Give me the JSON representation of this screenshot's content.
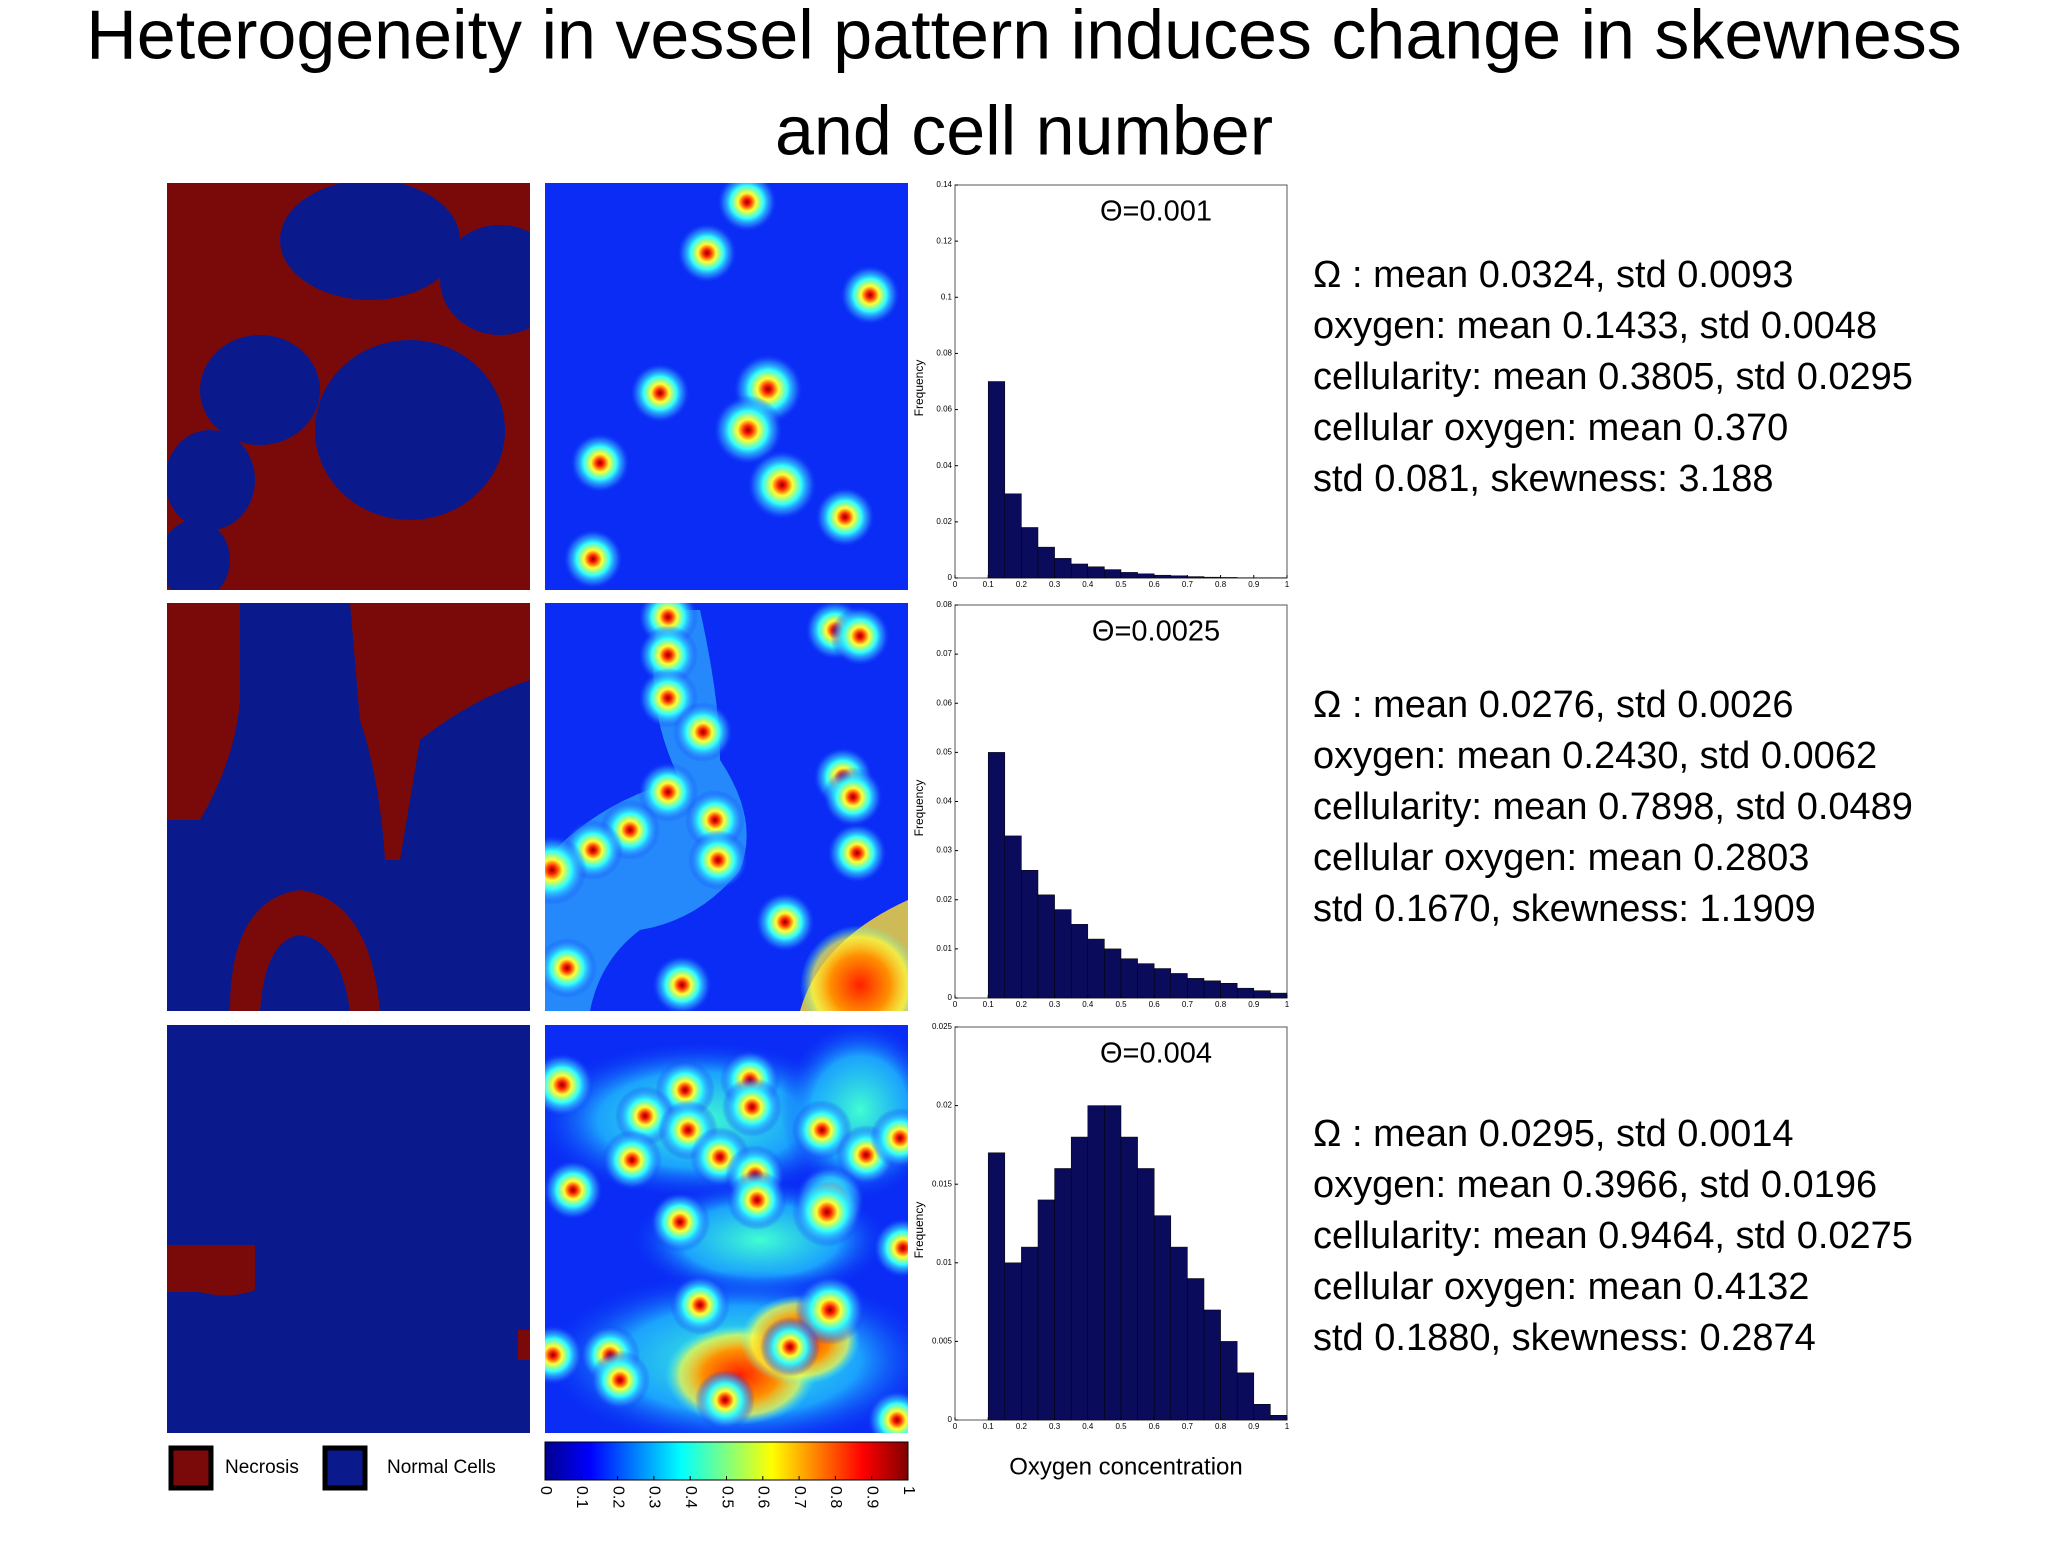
{
  "title": [
    "Heterogeneity in vessel pattern induces change in skewness",
    "and cell number"
  ],
  "rows": [
    {
      "stats": [
        "Ω : mean 0.0324, std 0.0093",
        "oxygen: mean 0.1433, std 0.0048",
        "cellularity: mean 0.3805, std 0.0295",
        "cellular oxygen: mean 0.370",
        "std 0.081, skewness: 3.188"
      ]
    },
    {
      "stats": [
        "Ω : mean 0.0276, std 0.0026",
        "oxygen: mean 0.2430, std 0.0062",
        "cellularity: mean 0.7898, std 0.0489",
        "cellular oxygen: mean 0.2803",
        "std 0.1670, skewness: 1.1909"
      ]
    },
    {
      "stats": [
        "Ω : mean 0.0295, std 0.0014",
        "oxygen: mean 0.3966, std 0.0196",
        "cellularity: mean 0.9464, std 0.0275",
        "cellular oxygen: mean 0.4132",
        "std 0.1880, skewness: 0.2874"
      ]
    }
  ],
  "legend": [
    "Necrosis",
    "Normal Cells"
  ],
  "colorbar": {
    "ticks": [
      0,
      0.1,
      0.2,
      0.3,
      0.4,
      0.5,
      0.6,
      0.7,
      0.8,
      0.9,
      1
    ]
  },
  "chart_data": [
    {
      "type": "histogram",
      "annotation": "Θ=0.001",
      "ylabel": "Frequency",
      "color": "#0b0b5c",
      "bins": [
        0.1,
        0.15,
        0.2,
        0.25,
        0.3,
        0.35,
        0.4,
        0.45,
        0.5,
        0.55,
        0.6,
        0.65,
        0.7,
        0.75,
        0.8,
        0.85,
        0.9,
        0.95,
        1.0
      ],
      "values": [
        0.07,
        0.03,
        0.018,
        0.011,
        0.007,
        0.005,
        0.004,
        0.003,
        0.002,
        0.0015,
        0.001,
        0.0008,
        0.0005,
        0.0003,
        0.0002,
        0.0001,
        0.0001,
        0.0001
      ],
      "xlim": [
        0,
        1
      ],
      "xticks": [
        0,
        0.1,
        0.2,
        0.3,
        0.4,
        0.5,
        0.6,
        0.7,
        0.8,
        0.9,
        1
      ],
      "ylim": [
        0,
        0.14
      ],
      "yticks": [
        0,
        0.02,
        0.04,
        0.06,
        0.08,
        0.1,
        0.12,
        0.14
      ]
    },
    {
      "type": "histogram",
      "annotation": "Θ=0.0025",
      "ylabel": "Frequency",
      "color": "#0b0b5c",
      "bins": [
        0.1,
        0.15,
        0.2,
        0.25,
        0.3,
        0.35,
        0.4,
        0.45,
        0.5,
        0.55,
        0.6,
        0.65,
        0.7,
        0.75,
        0.8,
        0.85,
        0.9,
        0.95,
        1.0
      ],
      "values": [
        0.05,
        0.033,
        0.026,
        0.021,
        0.018,
        0.015,
        0.012,
        0.01,
        0.008,
        0.007,
        0.006,
        0.005,
        0.004,
        0.0035,
        0.003,
        0.002,
        0.0015,
        0.001
      ],
      "xlim": [
        0,
        1
      ],
      "xticks": [
        0,
        0.1,
        0.2,
        0.3,
        0.4,
        0.5,
        0.6,
        0.7,
        0.8,
        0.9,
        1
      ],
      "ylim": [
        0,
        0.08
      ],
      "yticks": [
        0,
        0.01,
        0.02,
        0.03,
        0.04,
        0.05,
        0.06,
        0.07,
        0.08
      ]
    },
    {
      "type": "histogram",
      "annotation": "Θ=0.004",
      "ylabel": "Frequency",
      "xlabel": "Oxygen concentration",
      "color": "#0b0b5c",
      "bins": [
        0.1,
        0.15,
        0.2,
        0.25,
        0.3,
        0.35,
        0.4,
        0.45,
        0.5,
        0.55,
        0.6,
        0.65,
        0.7,
        0.75,
        0.8,
        0.85,
        0.9,
        0.95,
        1.0
      ],
      "values": [
        0.017,
        0.01,
        0.011,
        0.014,
        0.016,
        0.018,
        0.02,
        0.02,
        0.018,
        0.016,
        0.013,
        0.011,
        0.009,
        0.007,
        0.005,
        0.003,
        0.001,
        0.0003
      ],
      "xlim": [
        0,
        1
      ],
      "xticks": [
        0,
        0.1,
        0.2,
        0.3,
        0.4,
        0.5,
        0.6,
        0.7,
        0.8,
        0.9,
        1
      ],
      "ylim": [
        0,
        0.025
      ],
      "yticks": [
        0,
        0.005,
        0.01,
        0.015,
        0.02,
        0.025
      ]
    }
  ]
}
